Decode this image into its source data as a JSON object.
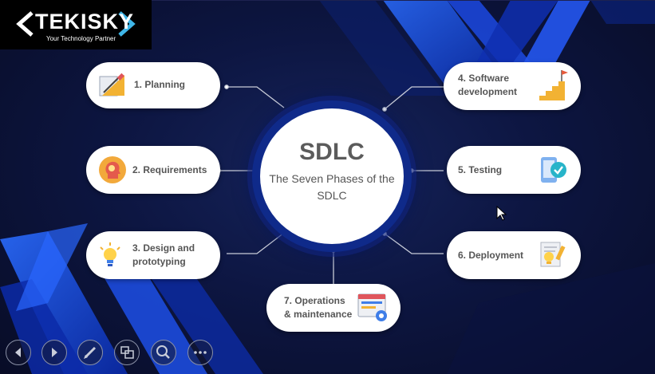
{
  "logo": {
    "name": "TEKISKY",
    "tagline": "Your Technology Partner"
  },
  "center": {
    "title": "SDLC",
    "subtitle": "The Seven Phases of the SDLC"
  },
  "phases": [
    {
      "label": "1. Planning",
      "icon": "planning-ruler-icon"
    },
    {
      "label": "2. Requirements",
      "icon": "head-lightbulb-icon"
    },
    {
      "label": "3. Design and prototyping",
      "icon": "lightbulb-icon"
    },
    {
      "label": "4. Software development",
      "icon": "stairs-flag-icon"
    },
    {
      "label": "5. Testing",
      "icon": "phone-checkmark-icon"
    },
    {
      "label": "6. Deployment",
      "icon": "document-lightbulb-icon"
    },
    {
      "label": "7. Operations & maintenance",
      "icon": "browser-gear-icon"
    }
  ],
  "controls": [
    "previous-slide",
    "next-slide",
    "pen",
    "slides-overview",
    "zoom",
    "more-options"
  ],
  "colors": {
    "background": "#0d1642",
    "accent_blue": "#1f4fe0",
    "pill_text": "#555555",
    "logo_cyan": "#3fb6e8"
  }
}
